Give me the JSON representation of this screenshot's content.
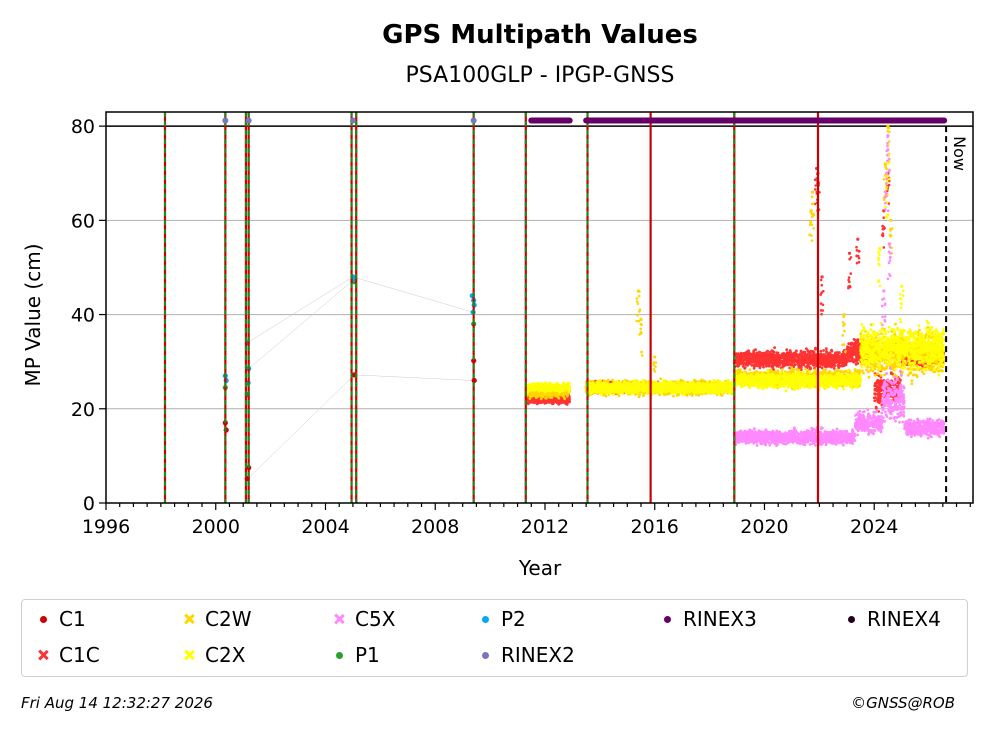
{
  "chart_data": {
    "type": "scatter",
    "title": "GPS Multipath Values",
    "subtitle": "PSA100GLP - IPGP-GNSS",
    "xlabel": "Year",
    "ylabel": "MP Value (cm)",
    "xlim": [
      1996.0,
      2027.6
    ],
    "ylim": [
      0,
      83
    ],
    "x_ticks": [
      1996,
      2000,
      2004,
      2008,
      2012,
      2016,
      2020,
      2024
    ],
    "y_ticks": [
      0,
      20,
      40,
      60,
      80
    ],
    "grid": "horizontal",
    "rinex_band_y": 81.2,
    "now_marker": {
      "x": 2026.62,
      "label": "Now"
    },
    "reference_line_y": 80,
    "event_lines": [
      {
        "x": 1998.15,
        "color": "#cc0000",
        "style": "solid-green-dashed"
      },
      {
        "x": 2000.35,
        "color": "#cc0000",
        "style": "solid-green-dashed"
      },
      {
        "x": 2001.1,
        "color": "#cc0000",
        "style": "solid-green-dashed"
      },
      {
        "x": 2001.2,
        "color": "#cc0000",
        "style": "solid-green-dashed"
      },
      {
        "x": 2004.95,
        "color": "#cc0000",
        "style": "solid-green-dashed"
      },
      {
        "x": 2005.12,
        "color": "#cc0000",
        "style": "solid-green-dashed"
      },
      {
        "x": 2009.4,
        "color": "#cc0000",
        "style": "solid-green-dashed"
      },
      {
        "x": 2011.3,
        "color": "#cc0000",
        "style": "solid-green-dashed"
      },
      {
        "x": 2013.55,
        "color": "#cc0000",
        "style": "solid-green-dashed"
      },
      {
        "x": 2015.85,
        "color": "#cc0000",
        "style": "solid"
      },
      {
        "x": 2018.9,
        "color": "#cc0000",
        "style": "solid-green-dashed"
      },
      {
        "x": 2021.95,
        "color": "#cc0000",
        "style": "solid"
      }
    ],
    "rinex_segments": [
      {
        "series": "RINEX2",
        "points": [
          2000.35,
          2001.2,
          2005.0,
          2009.4
        ]
      },
      {
        "series": "RINEX3",
        "ranges": [
          [
            2011.5,
            2012.9
          ],
          [
            2013.5,
            2026.55
          ]
        ]
      }
    ],
    "series": [
      {
        "name": "C1",
        "color": "#cc0000",
        "marker": "dot",
        "points": [
          [
            2000.35,
            17
          ],
          [
            2000.38,
            15.5
          ],
          [
            2001.15,
            5.2
          ],
          [
            2001.2,
            7.5
          ],
          [
            2005.05,
            27.2
          ],
          [
            2009.4,
            30.2
          ],
          [
            2009.42,
            26
          ]
        ]
      },
      {
        "name": "C1C",
        "color": "#ff3333",
        "marker": "cross",
        "segments": [
          {
            "x0": 2011.3,
            "x1": 2012.9,
            "mean": 22,
            "spread": 1.5
          },
          {
            "x0": 2013.5,
            "x1": 2015.0,
            "mean": 24.5,
            "spread": 2
          },
          {
            "x0": 2015.0,
            "x1": 2018.9,
            "mean": 24.5,
            "spread": 1.5
          },
          {
            "x0": 2018.9,
            "x1": 2023.0,
            "mean": 30.5,
            "spread": 3
          },
          {
            "x0": 2023.0,
            "x1": 2024.0,
            "mean": 32,
            "spread": 4
          },
          {
            "x0": 2024.0,
            "x1": 2025.0,
            "mean": 24,
            "spread": 6
          },
          {
            "x0": 2025.0,
            "x1": 2026.55,
            "mean": 31,
            "spread": 3
          }
        ],
        "spikes": [
          [
            2021.9,
            71
          ],
          [
            2021.95,
            70
          ],
          [
            2022.1,
            48
          ],
          [
            2023.4,
            56
          ],
          [
            2023.1,
            53
          ],
          [
            2024.5,
            70
          ],
          [
            2024.35,
            62
          ]
        ]
      },
      {
        "name": "C2W",
        "color": "#ffd700",
        "marker": "cross",
        "segments": [
          {
            "x0": 2011.3,
            "x1": 2012.9,
            "mean": 23.5,
            "spread": 2
          },
          {
            "x0": 2013.5,
            "x1": 2018.9,
            "mean": 24.5,
            "spread": 2.5
          },
          {
            "x0": 2018.9,
            "x1": 2023.5,
            "mean": 26.5,
            "spread": 3
          },
          {
            "x0": 2023.5,
            "x1": 2026.55,
            "mean": 32,
            "spread": 8
          }
        ],
        "spikes": [
          [
            2015.4,
            45
          ],
          [
            2015.5,
            39
          ],
          [
            2016.0,
            31
          ],
          [
            2021.7,
            62
          ],
          [
            2021.75,
            66
          ],
          [
            2024.5,
            80
          ],
          [
            2024.4,
            72
          ],
          [
            2024.6,
            60
          ],
          [
            2022.9,
            40
          ]
        ]
      },
      {
        "name": "C2X",
        "color": "#ffff00",
        "marker": "cross",
        "segments": [
          {
            "x0": 2011.3,
            "x1": 2012.9,
            "mean": 24.5,
            "spread": 1.5
          },
          {
            "x0": 2013.5,
            "x1": 2018.9,
            "mean": 24.5,
            "spread": 2
          },
          {
            "x0": 2018.9,
            "x1": 2023.5,
            "mean": 26,
            "spread": 2.5
          },
          {
            "x0": 2023.5,
            "x1": 2026.55,
            "mean": 33,
            "spread": 7
          }
        ],
        "spikes": [
          [
            2024.5,
            76
          ],
          [
            2024.45,
            68
          ],
          [
            2025.0,
            46
          ],
          [
            2024.2,
            54
          ]
        ]
      },
      {
        "name": "C5X",
        "color": "#ff88ff",
        "marker": "cross",
        "segments": [
          {
            "x0": 2018.9,
            "x1": 2023.3,
            "mean": 14,
            "spread": 2.5
          },
          {
            "x0": 2023.3,
            "x1": 2024.3,
            "mean": 17,
            "spread": 4
          },
          {
            "x0": 2024.3,
            "x1": 2025.1,
            "mean": 22,
            "spread": 8
          },
          {
            "x0": 2025.1,
            "x1": 2026.55,
            "mean": 16,
            "spread": 3
          }
        ],
        "spikes": [
          [
            2024.5,
            78
          ],
          [
            2024.45,
            70
          ],
          [
            2024.55,
            55
          ],
          [
            2024.35,
            45
          ]
        ]
      },
      {
        "name": "P1",
        "color": "#2ca02c",
        "marker": "dot",
        "points": [
          [
            2000.35,
            24.5
          ],
          [
            2001.15,
            23
          ],
          [
            2005.05,
            47
          ],
          [
            2009.4,
            38
          ]
        ]
      },
      {
        "name": "P2",
        "color": "#00aaee",
        "marker": "dot",
        "points": [
          [
            2000.35,
            27
          ],
          [
            2000.38,
            26
          ],
          [
            2001.15,
            34
          ],
          [
            2001.2,
            28.5
          ],
          [
            2001.18,
            25.5
          ],
          [
            2005.0,
            48
          ],
          [
            2005.05,
            47.5
          ],
          [
            2009.35,
            44
          ],
          [
            2009.4,
            43
          ],
          [
            2009.42,
            42
          ],
          [
            2009.38,
            40.5
          ]
        ]
      },
      {
        "name": "RINEX2",
        "color": "#7777bb",
        "marker": "dot"
      },
      {
        "name": "RINEX3",
        "color": "#660066",
        "marker": "dot"
      },
      {
        "name": "RINEX4",
        "color": "#220022",
        "marker": "dot"
      }
    ]
  },
  "legend": [
    {
      "label": "C1",
      "color": "#cc0000",
      "marker": "dot"
    },
    {
      "label": "C2W",
      "color": "#ffd700",
      "marker": "cross"
    },
    {
      "label": "C5X",
      "color": "#ff88ff",
      "marker": "cross"
    },
    {
      "label": "P2",
      "color": "#00aaee",
      "marker": "dot"
    },
    {
      "label": "RINEX3",
      "color": "#660066",
      "marker": "dot"
    },
    {
      "label": "RINEX4",
      "color": "#220022",
      "marker": "dot"
    },
    {
      "label": "C1C",
      "color": "#ff3333",
      "marker": "cross"
    },
    {
      "label": "C2X",
      "color": "#ffff00",
      "marker": "cross"
    },
    {
      "label": "P1",
      "color": "#2ca02c",
      "marker": "dot"
    },
    {
      "label": "RINEX2",
      "color": "#7777bb",
      "marker": "dot"
    }
  ],
  "footer": {
    "timestamp": "Fri Aug 14 12:32:27 2026",
    "copyright": "©GNSS@ROB"
  }
}
